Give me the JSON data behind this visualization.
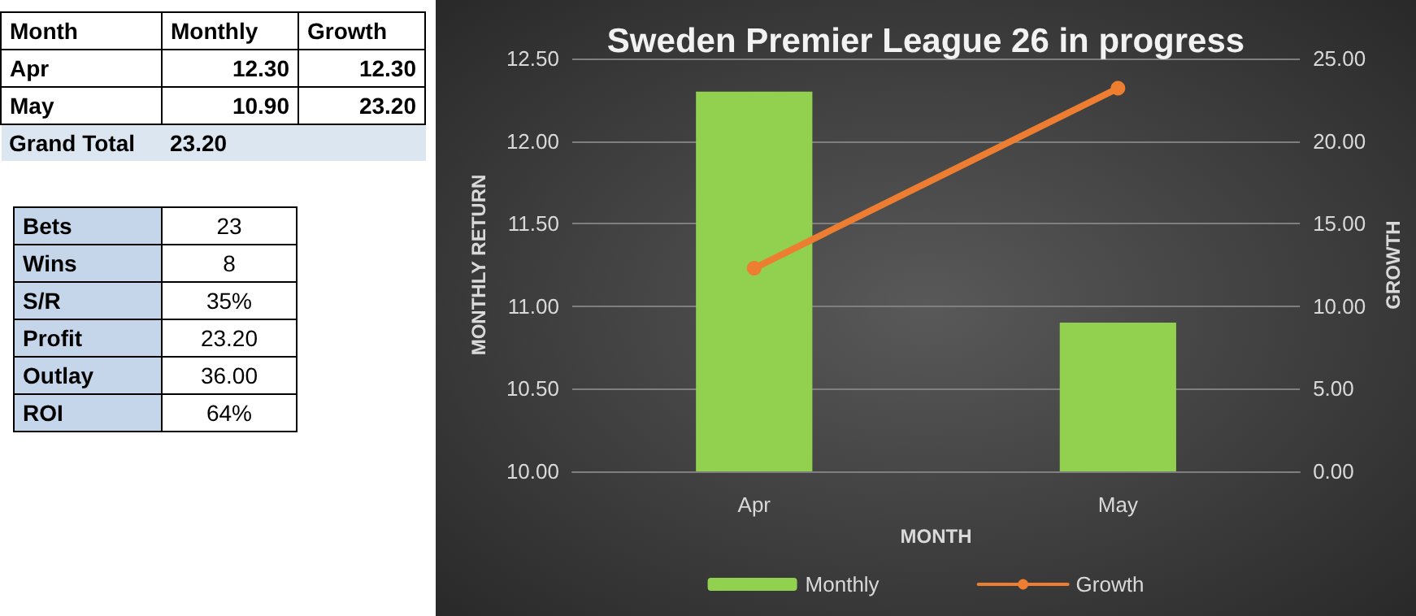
{
  "chart_data": [
    {
      "type": "other",
      "xlabel": "Month",
      "categories": [
        "Apr",
        "May",
        "Grand Total"
      ],
      "series": [
        {
          "name": "Monthly",
          "colors": [
            "#ffffff",
            "#ffffff",
            "#dce6f1"
          ],
          "values": [
            12.3,
            10.9,
            23.2
          ],
          "value_labels": [
            "12.30",
            "10.90",
            "23.20"
          ]
        },
        {
          "name": "Growth",
          "colors": [
            "#ffffff",
            "#ffffff",
            "#dce6f1"
          ],
          "values": [
            12.3,
            23.2,
            null
          ],
          "value_labels": [
            "12.30",
            "23.20",
            null
          ]
        }
      ]
    },
    {
      "type": "other",
      "annotations": [
        "Bets",
        "23",
        "Wins",
        "8",
        "S/R",
        "35%",
        "Profit",
        "23.20",
        "Outlay",
        "36.00",
        "ROI",
        "64%"
      ]
    },
    {
      "type": "bar",
      "title": "Sweden Premier League 26 in progress",
      "xlabel": "MONTH",
      "ylabel": "MONTHLY RETURN",
      "y2label": "GROWTH",
      "categories": [
        "Apr",
        "May"
      ],
      "series": [
        {
          "name": "Monthly",
          "type": "bar",
          "color": "#92d050",
          "values": [
            12.3,
            10.9
          ]
        },
        {
          "name": "Growth",
          "type": "line",
          "axis": "y2",
          "color": "#ed7d31",
          "values": [
            12.3,
            23.2
          ]
        }
      ],
      "ylim": [
        10,
        12.5
      ],
      "yticks": [
        {
          "value": 10,
          "label": "10.00"
        },
        {
          "value": 10.5,
          "label": "10.50"
        },
        {
          "value": 11,
          "label": "11.00"
        },
        {
          "value": 11.5,
          "label": "11.50"
        },
        {
          "value": 12,
          "label": "12.00"
        },
        {
          "value": 12.5,
          "label": "12.50"
        }
      ],
      "y2lim": [
        0,
        25
      ],
      "y2ticks": [
        {
          "value": 0,
          "label": "0.00"
        },
        {
          "value": 5,
          "label": "5.00"
        },
        {
          "value": 10,
          "label": "10.00"
        },
        {
          "value": 15,
          "label": "15.00"
        },
        {
          "value": 20,
          "label": "20.00"
        },
        {
          "value": 25,
          "label": "25.00"
        }
      ],
      "grid": "y",
      "legend": "bottom",
      "marker": "circle",
      "line_style": "solid"
    }
  ]
}
